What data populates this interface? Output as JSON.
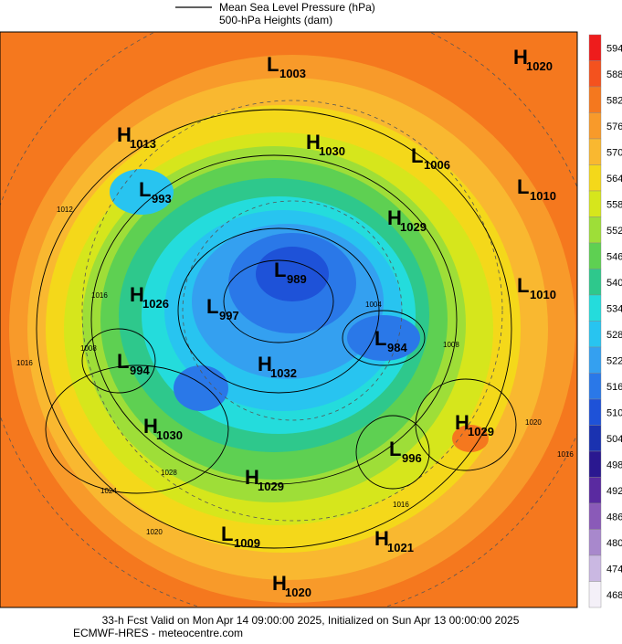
{
  "header": {
    "legend_lines": [
      "Mean Sea Level Pressure (hPa)",
      "500-hPa Heights (dam)"
    ]
  },
  "colorbar": {
    "ticks": [
      594,
      588,
      582,
      576,
      570,
      564,
      558,
      552,
      546,
      540,
      534,
      528,
      522,
      516,
      510,
      504,
      498,
      492,
      486,
      480,
      474,
      468
    ],
    "colors": [
      "#ee1c1c",
      "#f4521e",
      "#f5781e",
      "#f89a2a",
      "#f9b830",
      "#f4d81a",
      "#d6e61c",
      "#9ede38",
      "#5ed052",
      "#2ec88c",
      "#24dcdc",
      "#28c4f0",
      "#34a0f0",
      "#2a78e8",
      "#1e52d8",
      "#1a32b0",
      "#2a1890",
      "#5a2aa0",
      "#8a5ab8",
      "#a888cc",
      "#cab8e2",
      "#f4f0f8"
    ]
  },
  "pressure_centers": [
    {
      "symbol": "L",
      "value": 1003
    },
    {
      "symbol": "H",
      "value": 1020
    },
    {
      "symbol": "H",
      "value": 1013
    },
    {
      "symbol": "H",
      "value": 1030
    },
    {
      "symbol": "L",
      "value": 1006
    },
    {
      "symbol": "L",
      "value": 993
    },
    {
      "symbol": "L",
      "value": 1010
    },
    {
      "symbol": "H",
      "value": 1029
    },
    {
      "symbol": "L",
      "value": 989
    },
    {
      "symbol": "H",
      "value": 1026
    },
    {
      "symbol": "L",
      "value": 997
    },
    {
      "symbol": "L",
      "value": 1010
    },
    {
      "symbol": "L",
      "value": 984
    },
    {
      "symbol": "L",
      "value": 994
    },
    {
      "symbol": "H",
      "value": 1032
    },
    {
      "symbol": "H",
      "value": 1030
    },
    {
      "symbol": "H",
      "value": 1029
    },
    {
      "symbol": "L",
      "value": 996
    },
    {
      "symbol": "H",
      "value": 1029
    },
    {
      "symbol": "L",
      "value": 1009
    },
    {
      "symbol": "H",
      "value": 1021
    },
    {
      "symbol": "H",
      "value": 1020
    }
  ],
  "isobar_labels": [
    "1012",
    "1016",
    "1016",
    "1008",
    "1020",
    "1024",
    "1028",
    "1020",
    "1016",
    "1016",
    "1004",
    "1008"
  ],
  "footer": {
    "lines": [
      "33-h Fcst Valid on Mon Apr 14 09:00:00 2025, Initialized on Sun Apr 13 00:00:00 2025",
      "ECMWF-HRES  - meteocentre.com"
    ]
  }
}
